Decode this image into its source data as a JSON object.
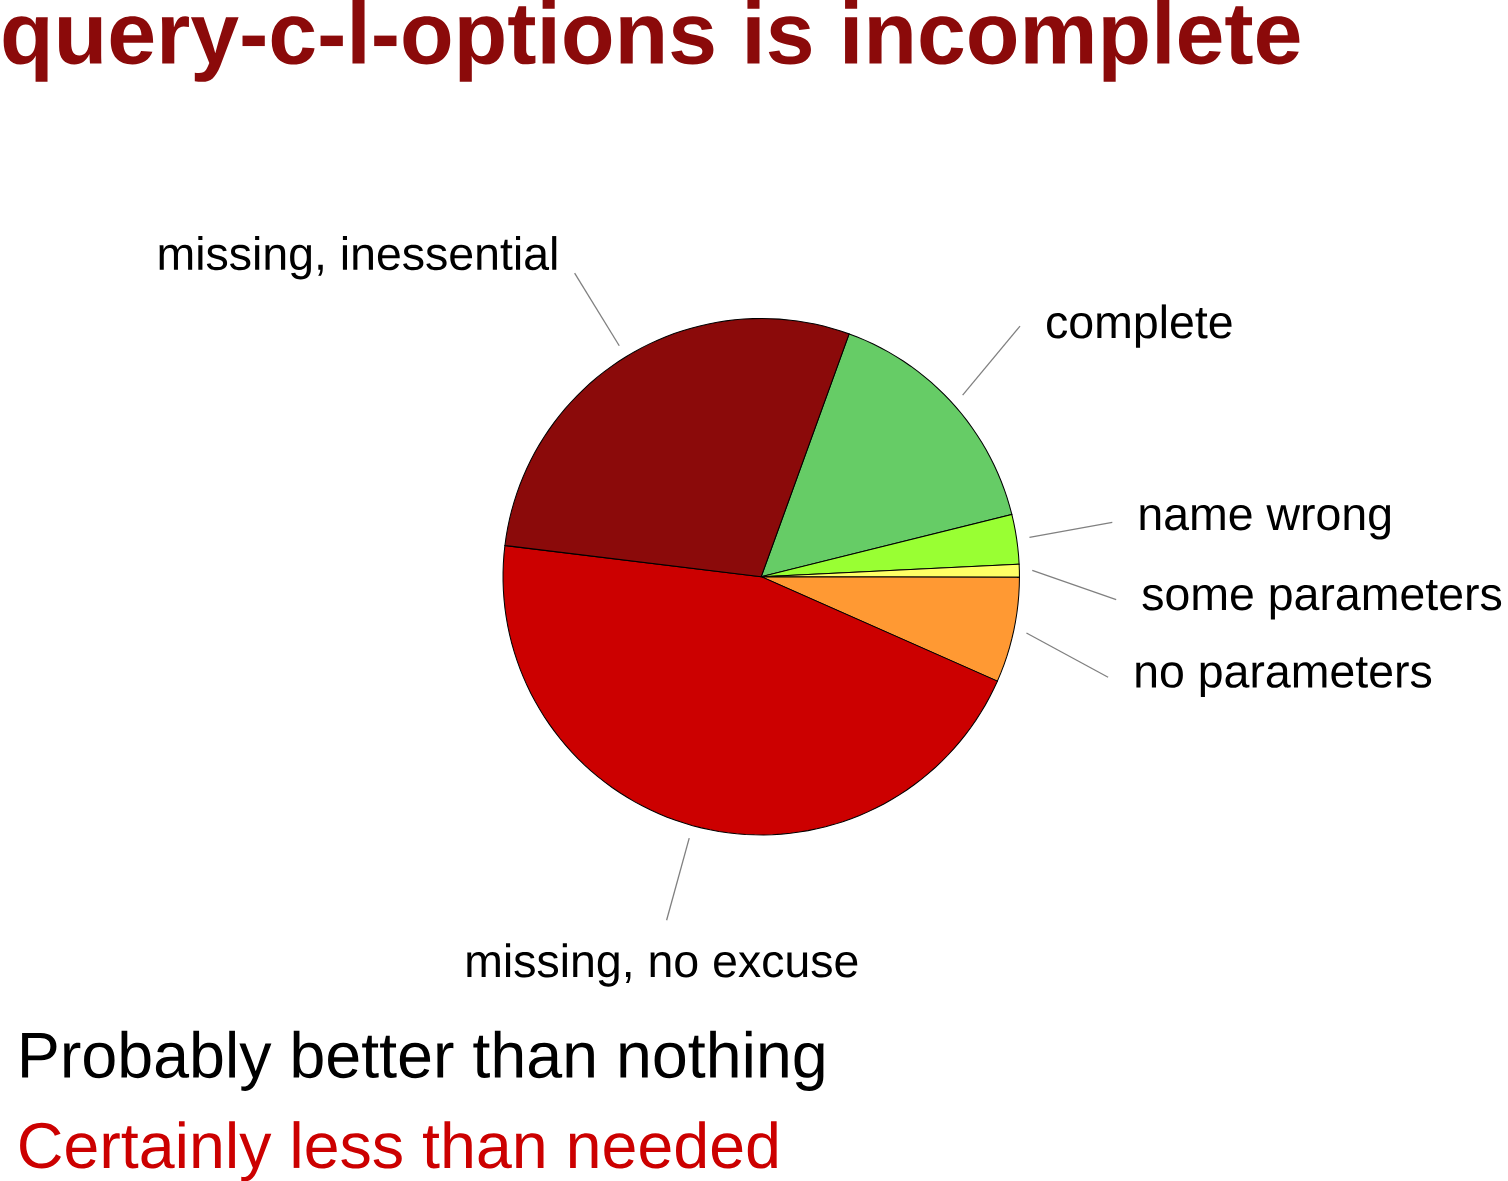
{
  "chart_data": {
    "type": "pie",
    "title": "query-c-l-options is incomplete",
    "categories": [
      "complete",
      "name wrong",
      "some parameters",
      "no parameters",
      "missing, no excuse",
      "missing, inessential"
    ],
    "values": [
      15.6,
      3.1,
      0.8,
      6.6,
      45.3,
      28.6
    ],
    "colors": [
      "#66cc66",
      "#99ff33",
      "#ffff66",
      "#ff9933",
      "#cc0000",
      "#8b0a0a"
    ],
    "annotations": [
      "Probably better than nothing",
      "Certainly less than needed"
    ]
  }
}
